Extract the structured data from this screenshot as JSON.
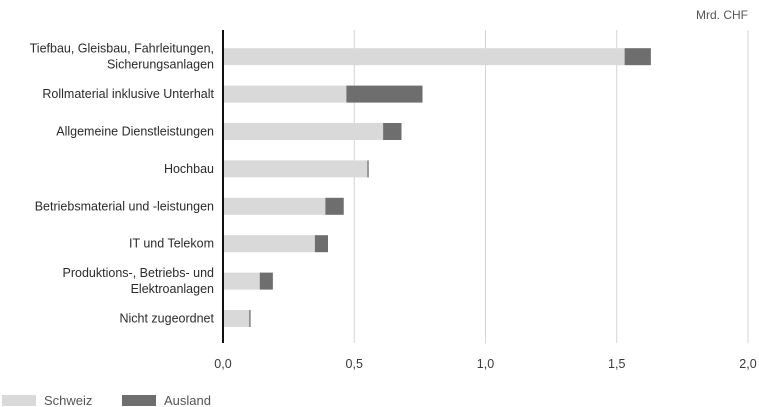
{
  "chart_data": {
    "type": "bar",
    "orientation": "horizontal",
    "stacked": true,
    "unit": "Mrd. CHF",
    "categories": [
      "Tiefbau, Gleisbau, Fahrleitungen,\nSicherungsanlagen",
      "Rollmaterial inklusive Unterhalt",
      "Allgemeine Dienstleistungen",
      "Hochbau",
      "Betriebsmaterial und -leistungen",
      "IT und Telekom",
      "Produktions-, Betriebs- und\nElektroanlagen",
      "Nicht zugeordnet"
    ],
    "series": [
      {
        "name": "Schweiz",
        "color": "#d9d9d9",
        "values": [
          1.53,
          0.47,
          0.61,
          0.55,
          0.39,
          0.35,
          0.14,
          0.1
        ]
      },
      {
        "name": "Ausland",
        "color": "#6e6e6e",
        "values": [
          0.1,
          0.29,
          0.07,
          0.005,
          0.07,
          0.05,
          0.05,
          0.005
        ]
      }
    ],
    "xlim": [
      0,
      2.0
    ],
    "xticks": [
      0,
      0.5,
      1.0,
      1.5,
      2.0
    ],
    "xtick_labels": [
      "0,0",
      "0,5",
      "1,0",
      "1,5",
      "2,0"
    ],
    "grid": "vertical",
    "legend": "bottom-left"
  }
}
